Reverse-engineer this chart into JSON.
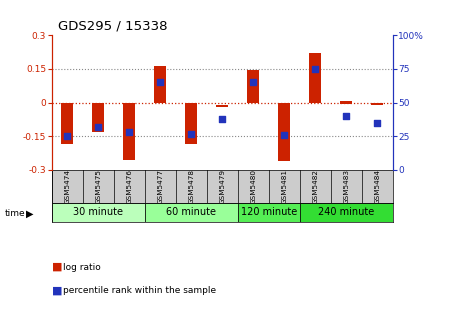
{
  "title": "GDS295 / 15338",
  "samples": [
    "GSM5474",
    "GSM5475",
    "GSM5476",
    "GSM5477",
    "GSM5478",
    "GSM5479",
    "GSM5480",
    "GSM5481",
    "GSM5482",
    "GSM5483",
    "GSM5484"
  ],
  "log_ratios_bottom": [
    -0.185,
    -0.13,
    -0.255,
    0.0,
    -0.185,
    -0.02,
    0.0,
    -0.26,
    0.0,
    -0.005,
    -0.01
  ],
  "log_ratios_top": [
    0.0,
    0.0,
    0.0,
    0.165,
    0.0,
    -0.01,
    0.145,
    0.0,
    0.22,
    0.005,
    0.0
  ],
  "percentile_ranks": [
    25,
    32,
    28,
    65,
    27,
    38,
    65,
    26,
    75,
    40,
    35
  ],
  "ylim": [
    -0.3,
    0.3
  ],
  "yticks_left": [
    -0.3,
    -0.15,
    0,
    0.15,
    0.3
  ],
  "yticks_right": [
    0,
    25,
    50,
    75,
    100
  ],
  "groups": [
    {
      "label": "30 minute",
      "start": 0,
      "end": 3,
      "color": "#bbffbb"
    },
    {
      "label": "60 minute",
      "start": 3,
      "end": 6,
      "color": "#99ff99"
    },
    {
      "label": "120 minute",
      "start": 6,
      "end": 8,
      "color": "#55ee55"
    },
    {
      "label": "240 minute",
      "start": 8,
      "end": 11,
      "color": "#33dd33"
    }
  ],
  "bar_color": "#cc2200",
  "dot_color": "#2233bb",
  "bar_width": 0.38,
  "dot_size": 22,
  "axis_color_left": "#cc2200",
  "axis_color_right": "#2233bb",
  "grid_color": "#888888",
  "bg_color": "#ffffff",
  "sample_row_color": "#cccccc",
  "legend_log": "log ratio",
  "legend_pct": "percentile rank within the sample"
}
